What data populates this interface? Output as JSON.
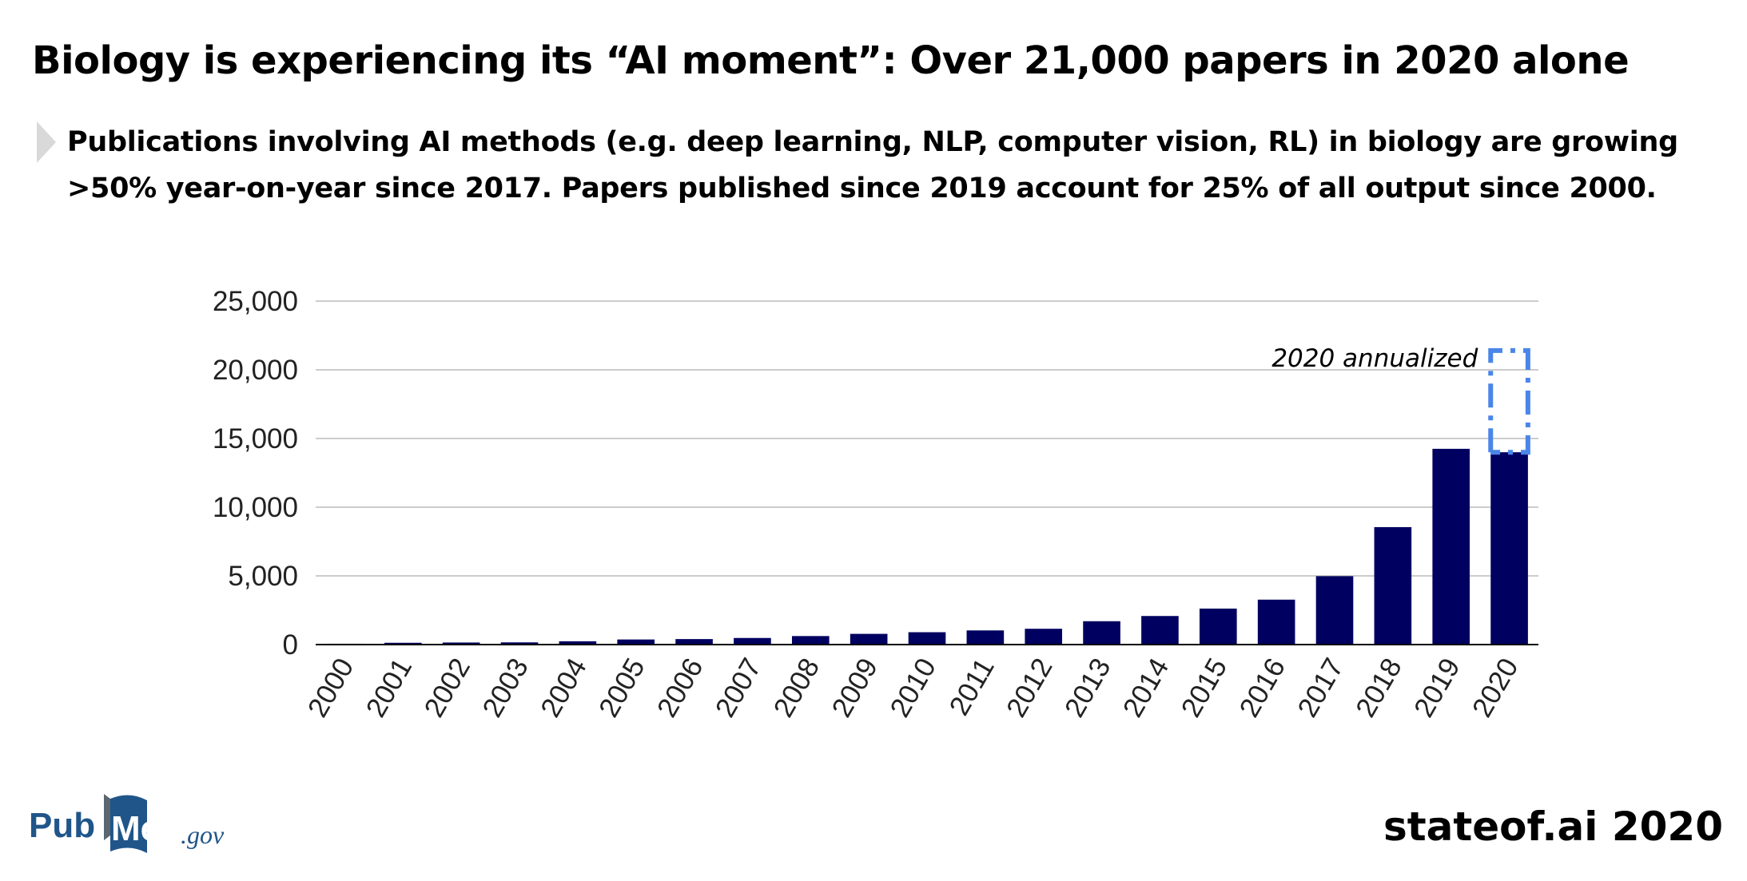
{
  "header": {
    "title": "Biology is experiencing its “AI moment”: Over 21,000 papers in 2020 alone",
    "subtitle_line1": "Publications involving AI methods (e.g. deep learning, NLP, computer vision, RL) in biology are growing",
    "subtitle_line2": ">50% year-on-year since 2017. Papers published since 2019 account for 25% of all output since 2000."
  },
  "chart_data": {
    "type": "bar",
    "categories": [
      "2000",
      "2001",
      "2002",
      "2003",
      "2004",
      "2005",
      "2006",
      "2007",
      "2008",
      "2009",
      "2010",
      "2011",
      "2012",
      "2013",
      "2014",
      "2015",
      "2016",
      "2017",
      "2018",
      "2019",
      "2020"
    ],
    "values": [
      60,
      130,
      150,
      160,
      240,
      370,
      400,
      480,
      620,
      780,
      900,
      1030,
      1150,
      1700,
      2080,
      2620,
      3270,
      4980,
      8550,
      14250,
      14000
    ],
    "annualized": {
      "category": "2020",
      "value": 21400,
      "label": "2020 annualized"
    },
    "ylim": [
      0,
      25000
    ],
    "yticks": [
      0,
      5000,
      10000,
      15000,
      20000,
      25000
    ],
    "ytick_labels": [
      "0",
      "5,000",
      "10,000",
      "15,000",
      "20,000",
      "25,000"
    ],
    "grid": true,
    "legend": "none",
    "colors": {
      "bar": "#000060",
      "annualized": "#4a86e8",
      "grid": "#cccccc",
      "axis": "#000000"
    }
  },
  "footer": {
    "pubmed_logo": {
      "part1": "Pub",
      "part2": "Med",
      "part3": ".gov",
      "colors": {
        "blue": "#20558a",
        "gray": "#5b6670"
      }
    },
    "brand": "stateof.ai 2020"
  }
}
